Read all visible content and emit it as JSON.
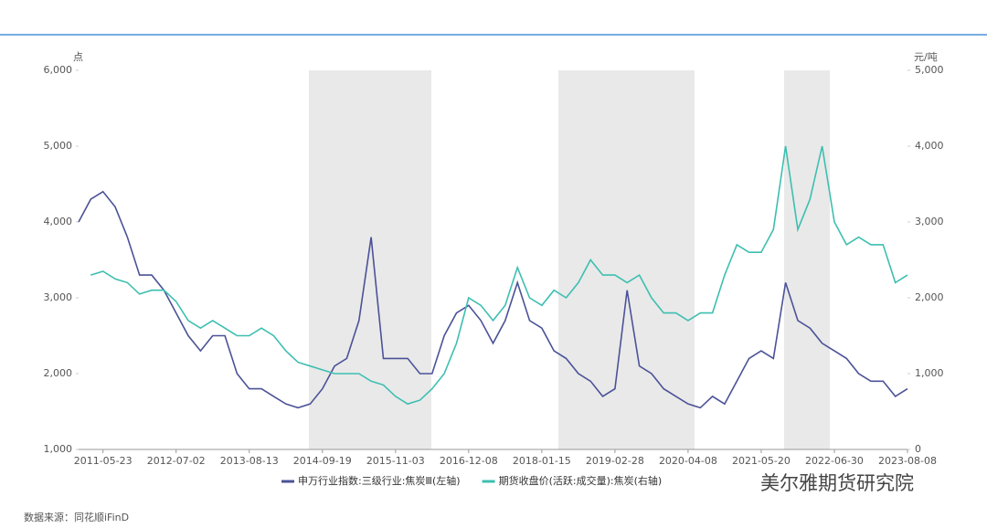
{
  "chart_data": {
    "type": "line",
    "y_label": "点",
    "y2_label": "元/吨",
    "source": "数据来源：同花顺iFinD",
    "watermark": "美尔雅期货研究院",
    "categories": [
      null,
      null,
      "2011-05-23",
      null,
      null,
      null,
      null,
      null,
      "2012-07-02",
      null,
      null,
      null,
      null,
      null,
      "2013-08-13",
      null,
      null,
      null,
      null,
      null,
      "2014-09-19",
      null,
      null,
      null,
      null,
      null,
      "2015-11-03",
      null,
      null,
      null,
      null,
      null,
      "2016-12-08",
      null,
      null,
      null,
      null,
      null,
      "2018-01-15",
      null,
      null,
      null,
      null,
      null,
      "2019-02-28",
      null,
      null,
      null,
      null,
      null,
      "2020-04-08",
      null,
      null,
      null,
      null,
      null,
      "2021-05-20",
      null,
      null,
      null,
      null,
      null,
      "2022-06-30",
      null,
      null,
      null,
      null,
      null,
      "2023-08-08"
    ],
    "series": [
      {
        "name": "申万行业指数:三级行业:焦炭Ⅲ(左轴)",
        "color": "#4b5297",
        "values": [
          4000,
          4300,
          4400,
          4200,
          3800,
          3300,
          3300,
          3100,
          2800,
          2500,
          2300,
          2500,
          2500,
          2000,
          1800,
          1800,
          1700,
          1600,
          1550,
          1600,
          1800,
          2100,
          2200,
          2700,
          3800,
          2200,
          2200,
          2200,
          2000,
          2000,
          2500,
          2800,
          2900,
          2700,
          2400,
          2700,
          3200,
          2700,
          2600,
          2300,
          2200,
          2000,
          1900,
          1700,
          1800,
          3100,
          2100,
          2000,
          1800,
          1700,
          1600,
          1550,
          1700,
          1600,
          1900,
          2200,
          2300,
          2200,
          3200,
          2700,
          2600,
          2400,
          2300,
          2200,
          2000,
          1900,
          1900,
          1700,
          1800
        ]
      },
      {
        "name": "期货收盘价(活跃:成交量):焦炭(右轴)",
        "color": "#3dbfb0",
        "axis": "y2",
        "values": [
          null,
          2300,
          2350,
          2250,
          2200,
          2050,
          2100,
          2100,
          1950,
          1700,
          1600,
          1700,
          1600,
          1500,
          1500,
          1600,
          1500,
          1300,
          1150,
          1100,
          1050,
          1000,
          1000,
          1000,
          900,
          850,
          700,
          600,
          650,
          800,
          1000,
          1400,
          2000,
          1900,
          1700,
          1900,
          2400,
          2000,
          1900,
          2100,
          2000,
          2200,
          2500,
          2300,
          2300,
          2200,
          2300,
          2000,
          1800,
          1800,
          1700,
          1800,
          1800,
          2300,
          2700,
          2600,
          2600,
          2900,
          4000,
          2900,
          3300,
          4000,
          3000,
          2700,
          2800,
          2700,
          2700,
          2200,
          2300
        ]
      }
    ],
    "ylim": [
      1000,
      6000
    ],
    "yticks": [
      {
        "value": 1000,
        "label": "1,000"
      },
      {
        "value": 2000,
        "label": "2,000"
      },
      {
        "value": 3000,
        "label": "3,000"
      },
      {
        "value": 4000,
        "label": "4,000"
      },
      {
        "value": 5000,
        "label": "5,000"
      },
      {
        "value": 6000,
        "label": "6,000"
      }
    ],
    "y2lim": [
      0,
      5000
    ],
    "y2ticks": [
      0,
      {
        "value": 1000,
        "label": "1,000"
      },
      {
        "value": 2000,
        "label": "2,000"
      },
      {
        "value": 3000,
        "label": "3,000"
      },
      {
        "value": 4000,
        "label": "4,000"
      },
      {
        "value": 5000,
        "label": "5,000"
      }
    ],
    "legend": "bottom"
  }
}
